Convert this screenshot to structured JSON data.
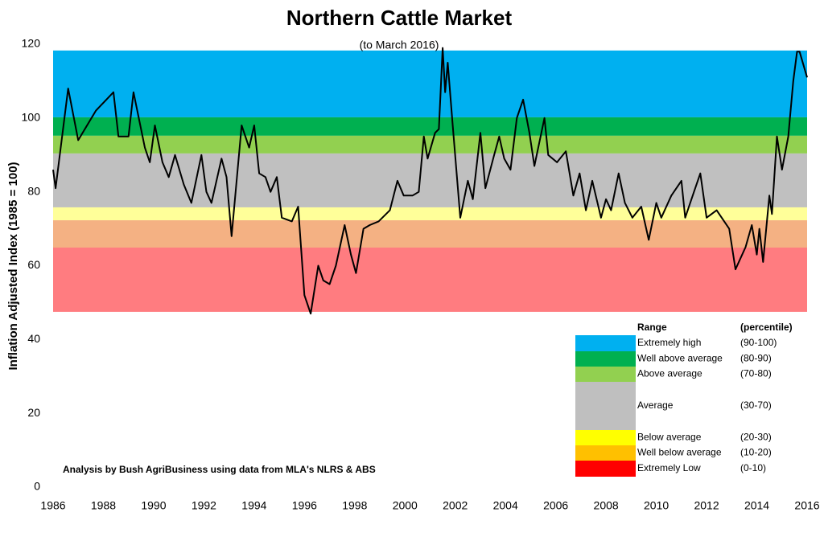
{
  "chart_data": {
    "type": "line",
    "title": "Northern Cattle Market",
    "subtitle": "(to March 2016)",
    "y_label": "Inflation Adjusted Index (1985 = 100)",
    "annotation": "Analysis by Bush AgriBusiness using data from MLA's NLRS & ABS",
    "legend_title": "Range",
    "legend_subtitle": "(percentile)",
    "xlim": [
      1986,
      2016
    ],
    "xticks": [
      1986,
      1988,
      1990,
      1992,
      1994,
      1996,
      1998,
      2000,
      2002,
      2004,
      2006,
      2008,
      2010,
      2012,
      2014,
      2016
    ],
    "ylim": [
      0,
      120
    ],
    "yticks": [
      0,
      20,
      40,
      60,
      80,
      100,
      120
    ],
    "bands": [
      {
        "name": "Extremely high",
        "percentile": "(90-100)",
        "from": 100.2,
        "to": 118.3,
        "color": "#00b0f0",
        "legend_color": "#00b0f0"
      },
      {
        "name": "Well above average",
        "percentile": "(80-90)",
        "from": 95.2,
        "to": 100.2,
        "color": "#00b050",
        "legend_color": "#00b050"
      },
      {
        "name": "Above average",
        "percentile": "(70-80)",
        "from": 90.4,
        "to": 95.2,
        "color": "#92d050",
        "legend_color": "#92d050"
      },
      {
        "name": "Average",
        "percentile": "(30-70)",
        "from": 75.8,
        "to": 90.4,
        "color": "#c0c0c0",
        "legend_color": "#bfbfbf"
      },
      {
        "name": "Below average",
        "percentile": "(20-30)",
        "from": 72.3,
        "to": 75.8,
        "color": "#ffff99",
        "legend_color": "#ffff00"
      },
      {
        "name": "Well below average",
        "percentile": "(10-20)",
        "from": 64.9,
        "to": 72.3,
        "color": "#f4b183",
        "legend_color": "#ffc000"
      },
      {
        "name": "Extremely Low",
        "percentile": "(0-10)",
        "from": 47.5,
        "to": 64.9,
        "color": "#ff7c80",
        "legend_color": "#ff0000"
      }
    ],
    "x": [
      1986.0,
      1986.1,
      1986.6,
      1987.0,
      1987.7,
      1988.4,
      1988.6,
      1989.0,
      1989.2,
      1989.65,
      1989.85,
      1990.05,
      1990.35,
      1990.6,
      1990.85,
      1991.2,
      1991.5,
      1991.9,
      1992.1,
      1992.3,
      1992.7,
      1992.9,
      1993.1,
      1993.5,
      1993.8,
      1994.0,
      1994.2,
      1994.45,
      1994.65,
      1994.9,
      1995.1,
      1995.5,
      1995.75,
      1996.0,
      1996.25,
      1996.55,
      1996.75,
      1997.0,
      1997.25,
      1997.6,
      1997.85,
      1998.05,
      1998.35,
      1998.6,
      1998.95,
      1999.4,
      1999.7,
      1999.95,
      2000.3,
      2000.55,
      2000.75,
      2000.9,
      2001.2,
      2001.35,
      2001.5,
      2001.6,
      2001.7,
      2001.9,
      2002.2,
      2002.5,
      2002.7,
      2003.0,
      2003.2,
      2003.55,
      2003.75,
      2003.95,
      2004.2,
      2004.45,
      2004.7,
      2004.95,
      2005.15,
      2005.55,
      2005.7,
      2006.05,
      2006.4,
      2006.7,
      2006.95,
      2007.2,
      2007.45,
      2007.8,
      2008.0,
      2008.2,
      2008.5,
      2008.75,
      2009.05,
      2009.4,
      2009.7,
      2010.0,
      2010.2,
      2010.6,
      2011.0,
      2011.15,
      2011.5,
      2011.75,
      2012.0,
      2012.4,
      2012.9,
      2013.15,
      2013.55,
      2013.8,
      2014.0,
      2014.1,
      2014.25,
      2014.5,
      2014.6,
      2014.8,
      2015.0,
      2015.25,
      2015.45,
      2015.6,
      2015.7,
      2016.0
    ],
    "series": [
      {
        "color": "#000000",
        "values": [
          86,
          81,
          108,
          94,
          102,
          107,
          95,
          95,
          107,
          92,
          88,
          98,
          88,
          84,
          90,
          82,
          77,
          90,
          80,
          77,
          89,
          84,
          68,
          98,
          92,
          98,
          85,
          84,
          80,
          84,
          73,
          72,
          76,
          52,
          47,
          60,
          56,
          55,
          60,
          71,
          63,
          58,
          70,
          71,
          72,
          75,
          83,
          79,
          79,
          80,
          95,
          89,
          96,
          97,
          119,
          107,
          115,
          98,
          73,
          83,
          78,
          96,
          81,
          90,
          95,
          89,
          86,
          100,
          105,
          96,
          87,
          100,
          90,
          88,
          91,
          79,
          85,
          75,
          83,
          73,
          78,
          75,
          85,
          77,
          73,
          76,
          67,
          77,
          73,
          79,
          83,
          73,
          80,
          85,
          73,
          75,
          70,
          59,
          65,
          71,
          63,
          70,
          61,
          79,
          74,
          95,
          86,
          95,
          110,
          118,
          118,
          111
        ]
      }
    ]
  }
}
